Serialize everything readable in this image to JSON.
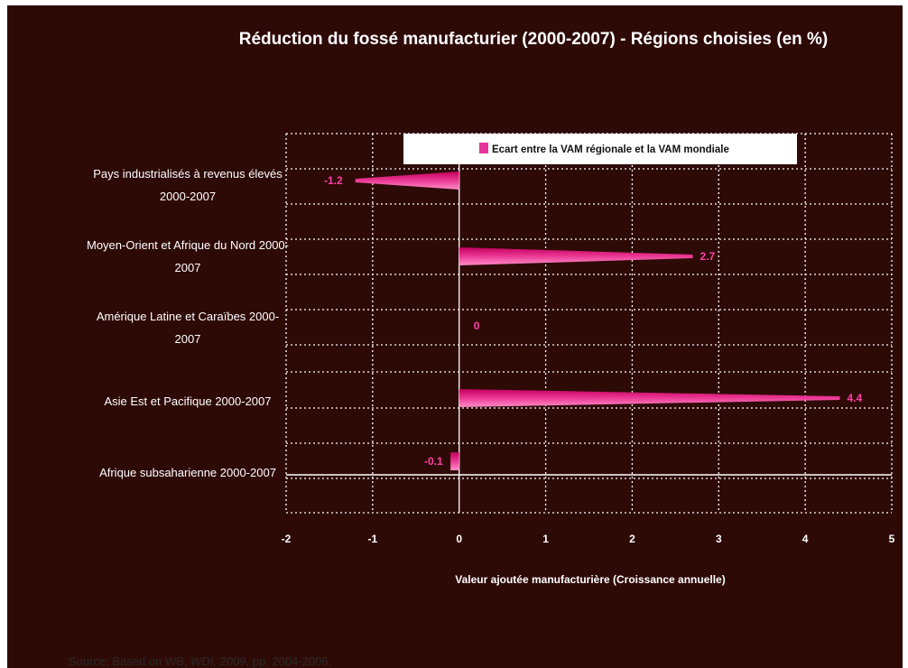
{
  "chart_data": {
    "type": "bar",
    "orientation": "horizontal",
    "title": "Réduction du fossé manufacturier (2000-2007) - Régions choisies (en %)",
    "xlabel": "Valeur ajoutée manufacturière (Croissance annuelle)",
    "ylabel": "",
    "xlim": [
      -2,
      5
    ],
    "x_ticks": [
      "-2",
      "-1",
      "0",
      "1",
      "2",
      "3",
      "4",
      "5"
    ],
    "grid": true,
    "legend_position": "top",
    "categories": [
      [
        "Pays industrialisés à revenus élevés",
        "2000-2007"
      ],
      [
        "Moyen-Orient et Afrique du Nord 2000-",
        "2007"
      ],
      [
        "Amérique Latine et Caraïbes 2000-",
        "2007"
      ],
      [
        "",
        "Asie Est et Pacifique  2000-2007"
      ],
      [
        "",
        "Afrique subsaharienne 2000-2007"
      ]
    ],
    "series": [
      {
        "name": "Ecart entre la VAM régionale et la VAM mondiale",
        "values": [
          -1.2,
          2.7,
          0,
          4.4,
          -0.1
        ],
        "value_labels": [
          "-1.2",
          "2.7",
          "0",
          "4.4",
          "-0.1"
        ]
      }
    ]
  },
  "source": {
    "prefix": "Source: Based on WB, ",
    "italic": "WDI, 2009",
    "suffix": ", pp. 2004-2006."
  },
  "colors": {
    "background": "#2e0a07",
    "bar_dark": "#c2005e",
    "bar_mid": "#e8338f",
    "bar_light": "#ff8cc8",
    "value_label": "#ff3fa6",
    "grid": "#ffffff",
    "legend_bg": "#ffffff",
    "legend_swatch": "#e8339a"
  }
}
